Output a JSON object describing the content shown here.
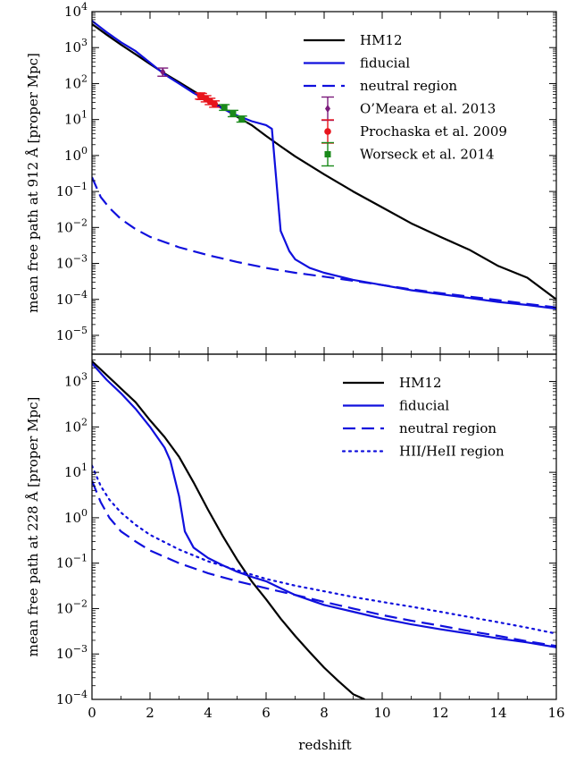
{
  "colors": {
    "hm12": "#000000",
    "fiducial": "#1010dd",
    "neutral": "#1010dd",
    "hii": "#1010dd",
    "omeara": "#7b1a7b",
    "prochaska": "#e8141c",
    "worseck": "#1a8a1a"
  },
  "chart_data": [
    {
      "type": "line",
      "ylabel": "mean free path at 912 Å [proper Mpc]",
      "xlabel": "",
      "xlim": [
        0,
        16
      ],
      "ylim": [
        3e-06,
        10000
      ],
      "yscale": "log",
      "xticks": [
        0,
        2,
        4,
        6,
        8,
        10,
        12,
        14,
        16
      ],
      "yticks": [
        {
          "value": 1e-05,
          "base": "10",
          "exp": "−5"
        },
        {
          "value": 0.0001,
          "base": "10",
          "exp": "−4"
        },
        {
          "value": 0.001,
          "base": "10",
          "exp": "−3"
        },
        {
          "value": 0.01,
          "base": "10",
          "exp": "−2"
        },
        {
          "value": 0.1,
          "base": "10",
          "exp": "−1"
        },
        {
          "value": 1,
          "base": "10",
          "exp": "0"
        },
        {
          "value": 10,
          "base": "10",
          "exp": "1"
        },
        {
          "value": 100,
          "base": "10",
          "exp": "2"
        },
        {
          "value": 1000,
          "base": "10",
          "exp": "3"
        },
        {
          "value": 10000,
          "base": "10",
          "exp": "4"
        }
      ],
      "legend_position": "top-right",
      "series": [
        {
          "name": "HM12",
          "style": "solid",
          "color": "#000000",
          "x": [
            0,
            0.5,
            1,
            1.5,
            2,
            2.5,
            3,
            3.5,
            4,
            4.5,
            5,
            5.5,
            6,
            6.5,
            7,
            8,
            9,
            10,
            11,
            12,
            13,
            14,
            15,
            16
          ],
          "y": [
            4500,
            2300,
            1200,
            650,
            350,
            190,
            110,
            62,
            36,
            21,
            12,
            7,
            3.5,
            1.8,
            0.95,
            0.3,
            0.1,
            0.036,
            0.013,
            0.0055,
            0.0024,
            0.00085,
            0.0004,
            0.0001
          ]
        },
        {
          "name": "fiducial",
          "style": "solid",
          "color": "#1010dd",
          "x": [
            0,
            0.5,
            1,
            1.5,
            2,
            2.5,
            3,
            3.5,
            4,
            4.5,
            5,
            5.5,
            6,
            6.2,
            6.5,
            6.8,
            7,
            7.5,
            8,
            9,
            10,
            11,
            12,
            13,
            14,
            15,
            16
          ],
          "y": [
            5500,
            2700,
            1400,
            800,
            380,
            180,
            100,
            55,
            33,
            20,
            13,
            9,
            7,
            5.5,
            0.008,
            0.0022,
            0.0013,
            0.00075,
            0.00055,
            0.00035,
            0.00025,
            0.00018,
            0.00014,
            0.00011,
            8.5e-05,
            7e-05,
            5.5e-05
          ]
        },
        {
          "name": "neutral region",
          "style": "dashed",
          "color": "#1010dd",
          "x": [
            0,
            0.3,
            0.6,
            1,
            1.5,
            2,
            3,
            4,
            5,
            6,
            7,
            8,
            9,
            10,
            11,
            12,
            13,
            14,
            15,
            16
          ],
          "y": [
            0.25,
            0.07,
            0.035,
            0.017,
            0.009,
            0.0055,
            0.0028,
            0.0017,
            0.0011,
            0.00075,
            0.00055,
            0.00043,
            0.00033,
            0.00025,
            0.00019,
            0.00015,
            0.00012,
            9.5e-05,
            7.5e-05,
            6e-05
          ]
        }
      ],
      "observations": [
        {
          "name": "O’Meara et al. 2013",
          "marker": "diamond",
          "color": "#7b1a7b",
          "points": [
            {
              "x": 2.44,
              "y": 210,
              "ylo": 160,
              "yhi": 270
            }
          ]
        },
        {
          "name": "Prochaska et al. 2009",
          "marker": "circle",
          "color": "#e8141c",
          "points": [
            {
              "x": 3.73,
              "y": 46,
              "ylo": 37,
              "yhi": 55
            },
            {
              "x": 3.78,
              "y": 44,
              "ylo": 36,
              "yhi": 53
            },
            {
              "x": 3.93,
              "y": 38,
              "ylo": 31,
              "yhi": 46
            },
            {
              "x": 4.07,
              "y": 32,
              "ylo": 26,
              "yhi": 39
            },
            {
              "x": 4.22,
              "y": 27,
              "ylo": 22,
              "yhi": 33
            }
          ]
        },
        {
          "name": "Worseck et al. 2014",
          "marker": "square",
          "color": "#1a8a1a",
          "points": [
            {
              "x": 4.56,
              "y": 22,
              "ylo": 18,
              "yhi": 26
            },
            {
              "x": 4.86,
              "y": 15,
              "ylo": 12,
              "yhi": 18
            },
            {
              "x": 5.16,
              "y": 10.3,
              "ylo": 8.5,
              "yhi": 12.5
            }
          ]
        }
      ],
      "legend": [
        {
          "label": "HM12",
          "kind": "line",
          "style": "solid",
          "color": "#000000"
        },
        {
          "label": "fiducial",
          "kind": "line",
          "style": "solid",
          "color": "#1010dd"
        },
        {
          "label": "neutral region",
          "kind": "line",
          "style": "dashed",
          "color": "#1010dd"
        },
        {
          "label": "O’Meara et al. 2013",
          "kind": "marker",
          "marker": "diamond",
          "color": "#7b1a7b"
        },
        {
          "label": "Prochaska et al. 2009",
          "kind": "marker",
          "marker": "circle",
          "color": "#e8141c"
        },
        {
          "label": "Worseck et al. 2014",
          "kind": "marker",
          "marker": "square",
          "color": "#1a8a1a"
        }
      ]
    },
    {
      "type": "line",
      "ylabel": "mean free path at 228 Å [proper Mpc]",
      "xlabel": "redshift",
      "xlim": [
        0,
        16
      ],
      "ylim": [
        0.0001,
        4000
      ],
      "yscale": "log",
      "xticks": [
        0,
        2,
        4,
        6,
        8,
        10,
        12,
        14,
        16
      ],
      "yticks": [
        {
          "value": 0.0001,
          "base": "10",
          "exp": "−4"
        },
        {
          "value": 0.001,
          "base": "10",
          "exp": "−3"
        },
        {
          "value": 0.01,
          "base": "10",
          "exp": "−2"
        },
        {
          "value": 0.1,
          "base": "10",
          "exp": "−1"
        },
        {
          "value": 1,
          "base": "10",
          "exp": "0"
        },
        {
          "value": 10,
          "base": "10",
          "exp": "1"
        },
        {
          "value": 100,
          "base": "10",
          "exp": "2"
        },
        {
          "value": 1000,
          "base": "10",
          "exp": "3"
        }
      ],
      "legend_position": "top-right",
      "series": [
        {
          "name": "HM12",
          "style": "solid",
          "color": "#000000",
          "x": [
            0,
            0.5,
            1,
            1.5,
            2,
            2.5,
            3,
            3.5,
            4,
            4.5,
            5,
            5.5,
            6,
            6.5,
            7,
            7.5,
            8,
            8.5,
            9,
            9.4
          ],
          "y": [
            2800,
            1400,
            700,
            350,
            140,
            60,
            22,
            6,
            1.5,
            0.4,
            0.12,
            0.04,
            0.016,
            0.006,
            0.0025,
            0.0011,
            0.0005,
            0.00025,
            0.00013,
            0.0001
          ]
        },
        {
          "name": "fiducial",
          "style": "solid",
          "color": "#1010dd",
          "x": [
            0,
            0.5,
            1,
            1.5,
            2,
            2.5,
            2.7,
            3,
            3.2,
            3.5,
            4,
            4.5,
            5,
            5.5,
            6,
            6.5,
            7,
            8,
            9,
            10,
            11,
            12,
            13,
            14,
            15,
            16
          ],
          "y": [
            2500,
            1100,
            550,
            250,
            100,
            35,
            18,
            3,
            0.5,
            0.22,
            0.13,
            0.09,
            0.065,
            0.05,
            0.04,
            0.028,
            0.02,
            0.012,
            0.0085,
            0.006,
            0.0045,
            0.0035,
            0.0028,
            0.0022,
            0.0018,
            0.0014
          ]
        },
        {
          "name": "neutral region",
          "style": "dashed",
          "color": "#1010dd",
          "x": [
            0,
            0.3,
            0.6,
            1,
            1.5,
            2,
            3,
            4,
            5,
            6,
            7,
            8,
            9,
            10,
            11,
            12,
            13,
            14,
            15,
            16
          ],
          "y": [
            6.5,
            2.2,
            1.0,
            0.5,
            0.3,
            0.19,
            0.1,
            0.06,
            0.04,
            0.028,
            0.02,
            0.014,
            0.01,
            0.0072,
            0.0054,
            0.0042,
            0.0032,
            0.0025,
            0.0019,
            0.0015
          ]
        },
        {
          "name": "HII/HeII region",
          "style": "dotted",
          "color": "#1010dd",
          "x": [
            0,
            0.3,
            0.6,
            1,
            1.5,
            2,
            3,
            4,
            5,
            6,
            7,
            8,
            9,
            10,
            11,
            12,
            13,
            14,
            15,
            16
          ],
          "y": [
            14,
            5,
            2.5,
            1.3,
            0.7,
            0.42,
            0.2,
            0.11,
            0.07,
            0.045,
            0.032,
            0.024,
            0.018,
            0.014,
            0.011,
            0.0085,
            0.0065,
            0.005,
            0.0038,
            0.0028
          ]
        }
      ],
      "legend": [
        {
          "label": "HM12",
          "kind": "line",
          "style": "solid",
          "color": "#000000"
        },
        {
          "label": "fiducial",
          "kind": "line",
          "style": "solid",
          "color": "#1010dd"
        },
        {
          "label": "neutral region",
          "kind": "line",
          "style": "dashed",
          "color": "#1010dd"
        },
        {
          "label": "HII/HeII region",
          "kind": "line",
          "style": "dotted",
          "color": "#1010dd"
        }
      ]
    }
  ]
}
